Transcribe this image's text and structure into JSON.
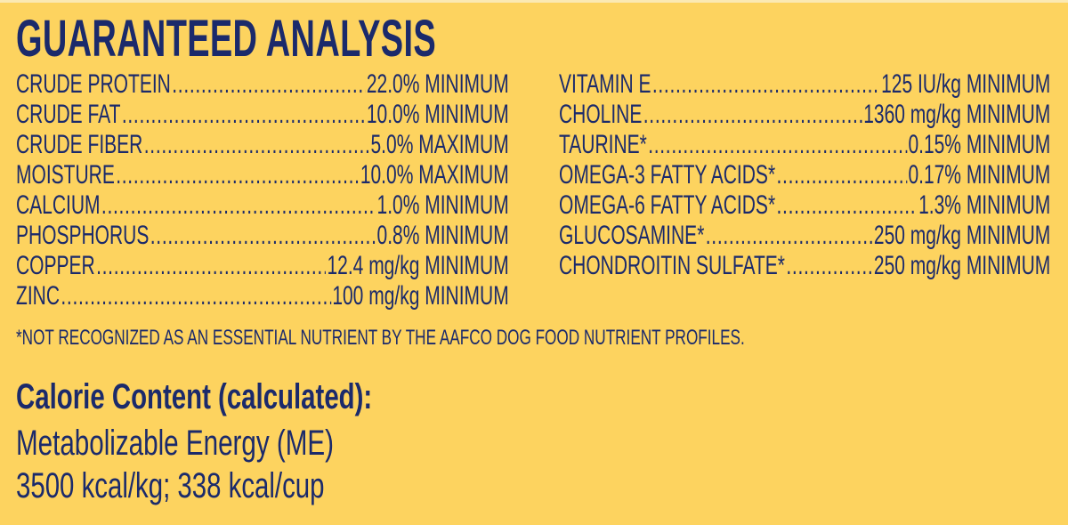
{
  "title": "GUARANTEED ANALYSIS",
  "left_column": [
    {
      "label": "CRUDE PROTEIN",
      "value": "22.0% MINIMUM"
    },
    {
      "label": "CRUDE FAT",
      "value": "10.0% MINIMUM"
    },
    {
      "label": "CRUDE FIBER",
      "value": "5.0% MAXIMUM"
    },
    {
      "label": "MOISTURE",
      "value": "10.0% MAXIMUM"
    },
    {
      "label": "CALCIUM",
      "value": "1.0% MINIMUM"
    },
    {
      "label": "PHOSPHORUS",
      "value": "0.8% MINIMUM"
    },
    {
      "label": "COPPER",
      "value": "12.4 mg/kg MINIMUM"
    },
    {
      "label": "ZINC",
      "value": "100 mg/kg MINIMUM"
    }
  ],
  "right_column": [
    {
      "label": "VITAMIN E",
      "value": "125 IU/kg MINIMUM"
    },
    {
      "label": "CHOLINE",
      "value": "1360 mg/kg MINIMUM"
    },
    {
      "label": "TAURINE*",
      "value": "0.15% MINIMUM"
    },
    {
      "label": "OMEGA-3 FATTY ACIDS*",
      "value": "0.17% MINIMUM"
    },
    {
      "label": "OMEGA-6 FATTY ACIDS*",
      "value": "1.3% MINIMUM"
    },
    {
      "label": "GLUCOSAMINE*",
      "value": "250 mg/kg MINIMUM"
    },
    {
      "label": "CHONDROITIN SULFATE*",
      "value": "250 mg/kg MINIMUM"
    }
  ],
  "footnote": "*NOT RECOGNIZED AS AN ESSENTIAL NUTRIENT BY THE AAFCO DOG FOOD NUTRIENT PROFILES.",
  "calorie": {
    "heading": "Calorie Content (calculated):",
    "line1": "Metabolizable Energy (ME)",
    "line2": "3500 kcal/kg; 338 kcal/cup"
  },
  "colors": {
    "background": "#fdd35f",
    "text": "#1b2a6b"
  }
}
